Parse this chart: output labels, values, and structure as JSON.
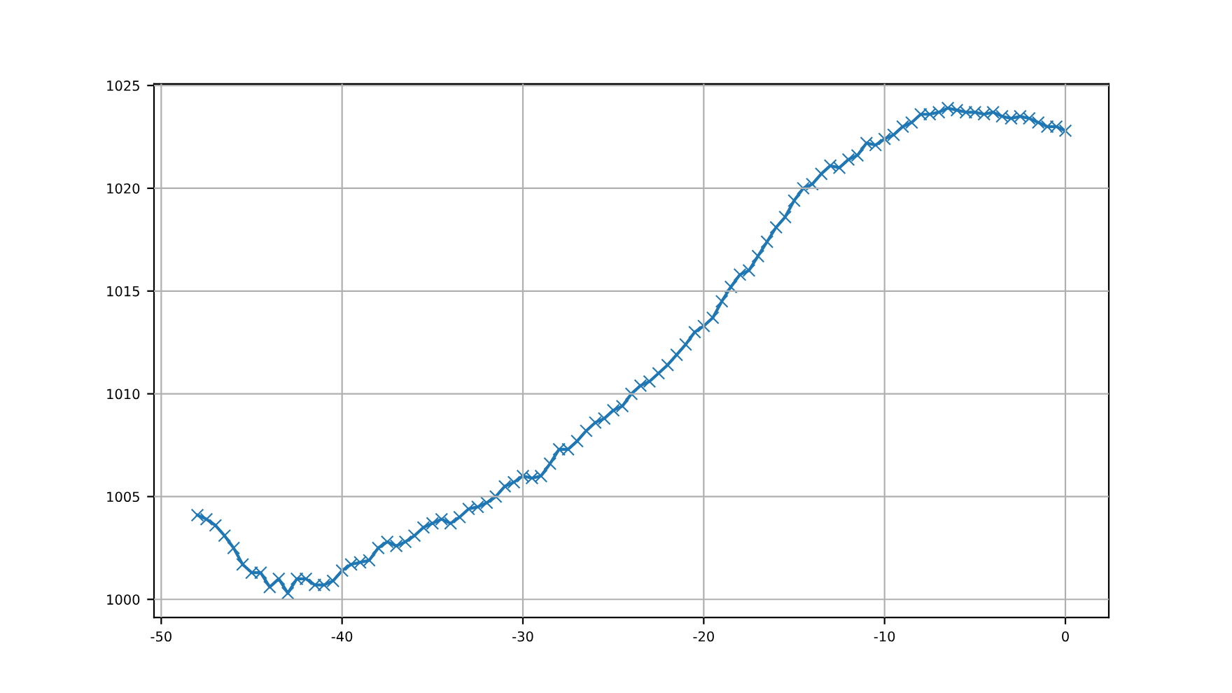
{
  "chart_data": {
    "type": "line",
    "marker": "cross",
    "grid": true,
    "x": [
      -48,
      -47.5,
      -47,
      -46.5,
      -46,
      -45.5,
      -45,
      -44.5,
      -44,
      -43.5,
      -43,
      -42.5,
      -42,
      -41.5,
      -41,
      -40.5,
      -40,
      -39.5,
      -39,
      -38.5,
      -38,
      -37.5,
      -37,
      -36.5,
      -36,
      -35.5,
      -35,
      -34.5,
      -34,
      -33.5,
      -33,
      -32.5,
      -32,
      -31.5,
      -31,
      -30.5,
      -30,
      -29.5,
      -29,
      -28.5,
      -28,
      -27.5,
      -27,
      -26.5,
      -26,
      -25.5,
      -25,
      -24.5,
      -24,
      -23.5,
      -23,
      -22.5,
      -22,
      -21.5,
      -21,
      -20.5,
      -20,
      -19.5,
      -19,
      -18.5,
      -18,
      -17.5,
      -17,
      -16.5,
      -16,
      -15.5,
      -15,
      -14.5,
      -14,
      -13.5,
      -13,
      -12.5,
      -12,
      -11.5,
      -11,
      -10.5,
      -10,
      -9.5,
      -9,
      -8.5,
      -8,
      -7.5,
      -7,
      -6.5,
      -6,
      -5.5,
      -5,
      -4.5,
      -4,
      -3.5,
      -3,
      -2.5,
      -2,
      -1.5,
      -1,
      -0.5,
      0
    ],
    "series": [
      {
        "color": "#1f77b4",
        "values": [
          1004.1,
          1003.9,
          1003.6,
          1003.1,
          1002.5,
          1001.7,
          1001.3,
          1001.3,
          1000.6,
          1001.0,
          1000.3,
          1001.0,
          1001.0,
          1000.7,
          1000.7,
          1000.9,
          1001.4,
          1001.7,
          1001.8,
          1001.9,
          1002.5,
          1002.8,
          1002.6,
          1002.8,
          1003.1,
          1003.5,
          1003.7,
          1003.9,
          1003.7,
          1004.0,
          1004.4,
          1004.5,
          1004.7,
          1005.0,
          1005.5,
          1005.7,
          1006.0,
          1005.9,
          1006.0,
          1006.6,
          1007.3,
          1007.3,
          1007.7,
          1008.2,
          1008.6,
          1008.8,
          1009.2,
          1009.4,
          1010.0,
          1010.4,
          1010.6,
          1011.0,
          1011.4,
          1011.9,
          1012.4,
          1013.0,
          1013.3,
          1013.7,
          1014.5,
          1015.2,
          1015.8,
          1016.0,
          1016.7,
          1017.4,
          1018.1,
          1018.6,
          1019.4,
          1020.0,
          1020.2,
          1020.7,
          1021.1,
          1021.0,
          1021.4,
          1021.6,
          1022.2,
          1022.1,
          1022.4,
          1022.6,
          1023.0,
          1023.2,
          1023.6,
          1023.6,
          1023.7,
          1023.9,
          1023.8,
          1023.7,
          1023.7,
          1023.6,
          1023.7,
          1023.5,
          1023.4,
          1023.5,
          1023.4,
          1023.2,
          1023.0,
          1023.0,
          1022.8
        ]
      }
    ],
    "xlim": [
      -50.4,
      2.4
    ],
    "ylim": [
      999.12,
      1025.08
    ],
    "xticks": [
      -50,
      -40,
      -30,
      -20,
      -10,
      0
    ],
    "yticks": [
      1000,
      1005,
      1010,
      1015,
      1020,
      1025
    ]
  }
}
